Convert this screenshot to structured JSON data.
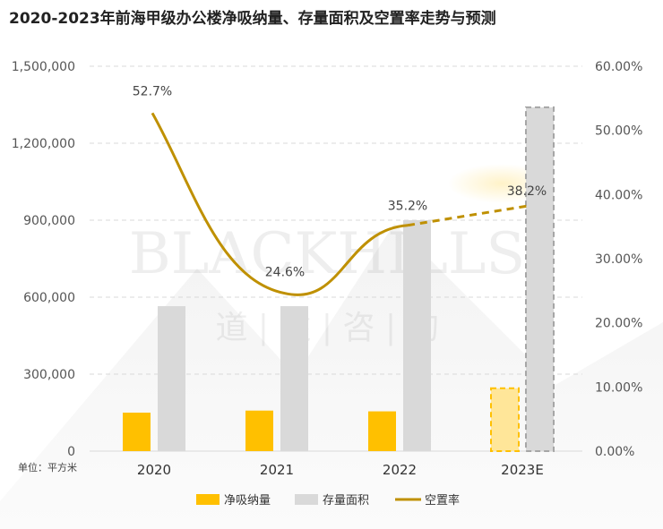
{
  "title": "2020-2023年前海甲级办公楼净吸纳量、存量面积及空置率走势与预测",
  "unit_label": "单位：平方米",
  "watermark": {
    "brand": "BLACKHILLS",
    "sub": "道 | 遠 | 咨 | 詢"
  },
  "colors": {
    "absorption": "#FFC000",
    "absorption_forecast": "#FFE699",
    "stock": "#D9D9D9",
    "vacancy": "#BF9000",
    "grid": "#D9D9D9"
  },
  "chart_data": {
    "type": "bar+line",
    "categories": [
      "2020",
      "2021",
      "2022",
      "2023E"
    ],
    "series": [
      {
        "name": "净吸纳量",
        "type": "bar",
        "axis": "left",
        "values": [
          150000,
          158000,
          155000,
          245000
        ]
      },
      {
        "name": "存量面积",
        "type": "bar",
        "axis": "left",
        "values": [
          565000,
          565000,
          900000,
          1340000
        ]
      },
      {
        "name": "空置率",
        "type": "line",
        "axis": "right",
        "values": [
          52.7,
          24.6,
          35.2,
          38.2
        ]
      }
    ],
    "data_labels": [
      "52.7%",
      "24.6%",
      "35.2%",
      "38.2%"
    ],
    "left_axis": {
      "ylim": [
        0,
        1500000
      ],
      "ticks": [
        "0",
        "300,000",
        "600,000",
        "900,000",
        "1,200,000",
        "1,500,000"
      ]
    },
    "right_axis": {
      "ylim": [
        0,
        60
      ],
      "ticks": [
        "0.00%",
        "10.00%",
        "20.00%",
        "30.00%",
        "40.00%",
        "50.00%",
        "60.00%"
      ]
    },
    "forecast_category": "2023E",
    "grid": true,
    "legend": "bottom"
  }
}
